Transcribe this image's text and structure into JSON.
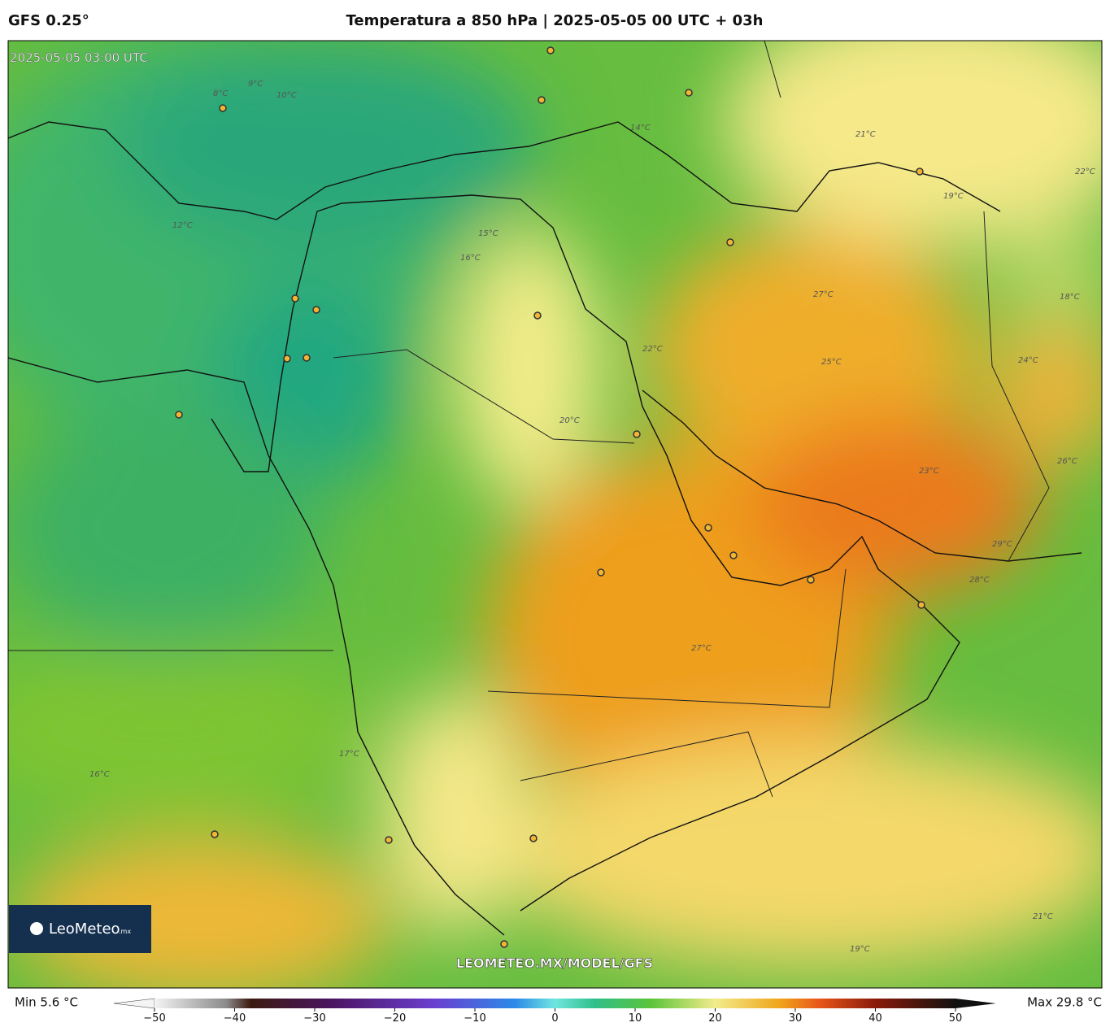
{
  "header": {
    "model": "GFS 0.25°",
    "title": "Temperatura a 850 hPa | 2025-05-05 00 UTC + 03h"
  },
  "map": {
    "valid_time": "2025-05-05 03:00 UTC",
    "watermark": "LEOMETEO.MX/MODEL/GFS",
    "logo": {
      "name": "LeoMeteo",
      "suffix": ".mx"
    },
    "contour_labels": [
      "8°C",
      "9°C",
      "10°C",
      "12°C",
      "14°C",
      "15°C",
      "16°C",
      "17°C",
      "18°C",
      "19°C",
      "20°C",
      "21°C",
      "22°C",
      "23°C",
      "24°C",
      "25°C",
      "26°C",
      "27°C",
      "28°C",
      "29°C",
      "16°C",
      "22°C",
      "27°C",
      "19°C",
      "21°C"
    ]
  },
  "colorbar": {
    "min_label": "Min 5.6 °C",
    "max_label": "Max 29.8 °C",
    "lim": [
      -50,
      50
    ],
    "ticks": [
      {
        "value": -50,
        "label": "−50"
      },
      {
        "value": -40,
        "label": "−40"
      },
      {
        "value": -30,
        "label": "−30"
      },
      {
        "value": -20,
        "label": "−20"
      },
      {
        "value": -10,
        "label": "−10"
      },
      0,
      10,
      20,
      30,
      40,
      50
    ]
  }
}
